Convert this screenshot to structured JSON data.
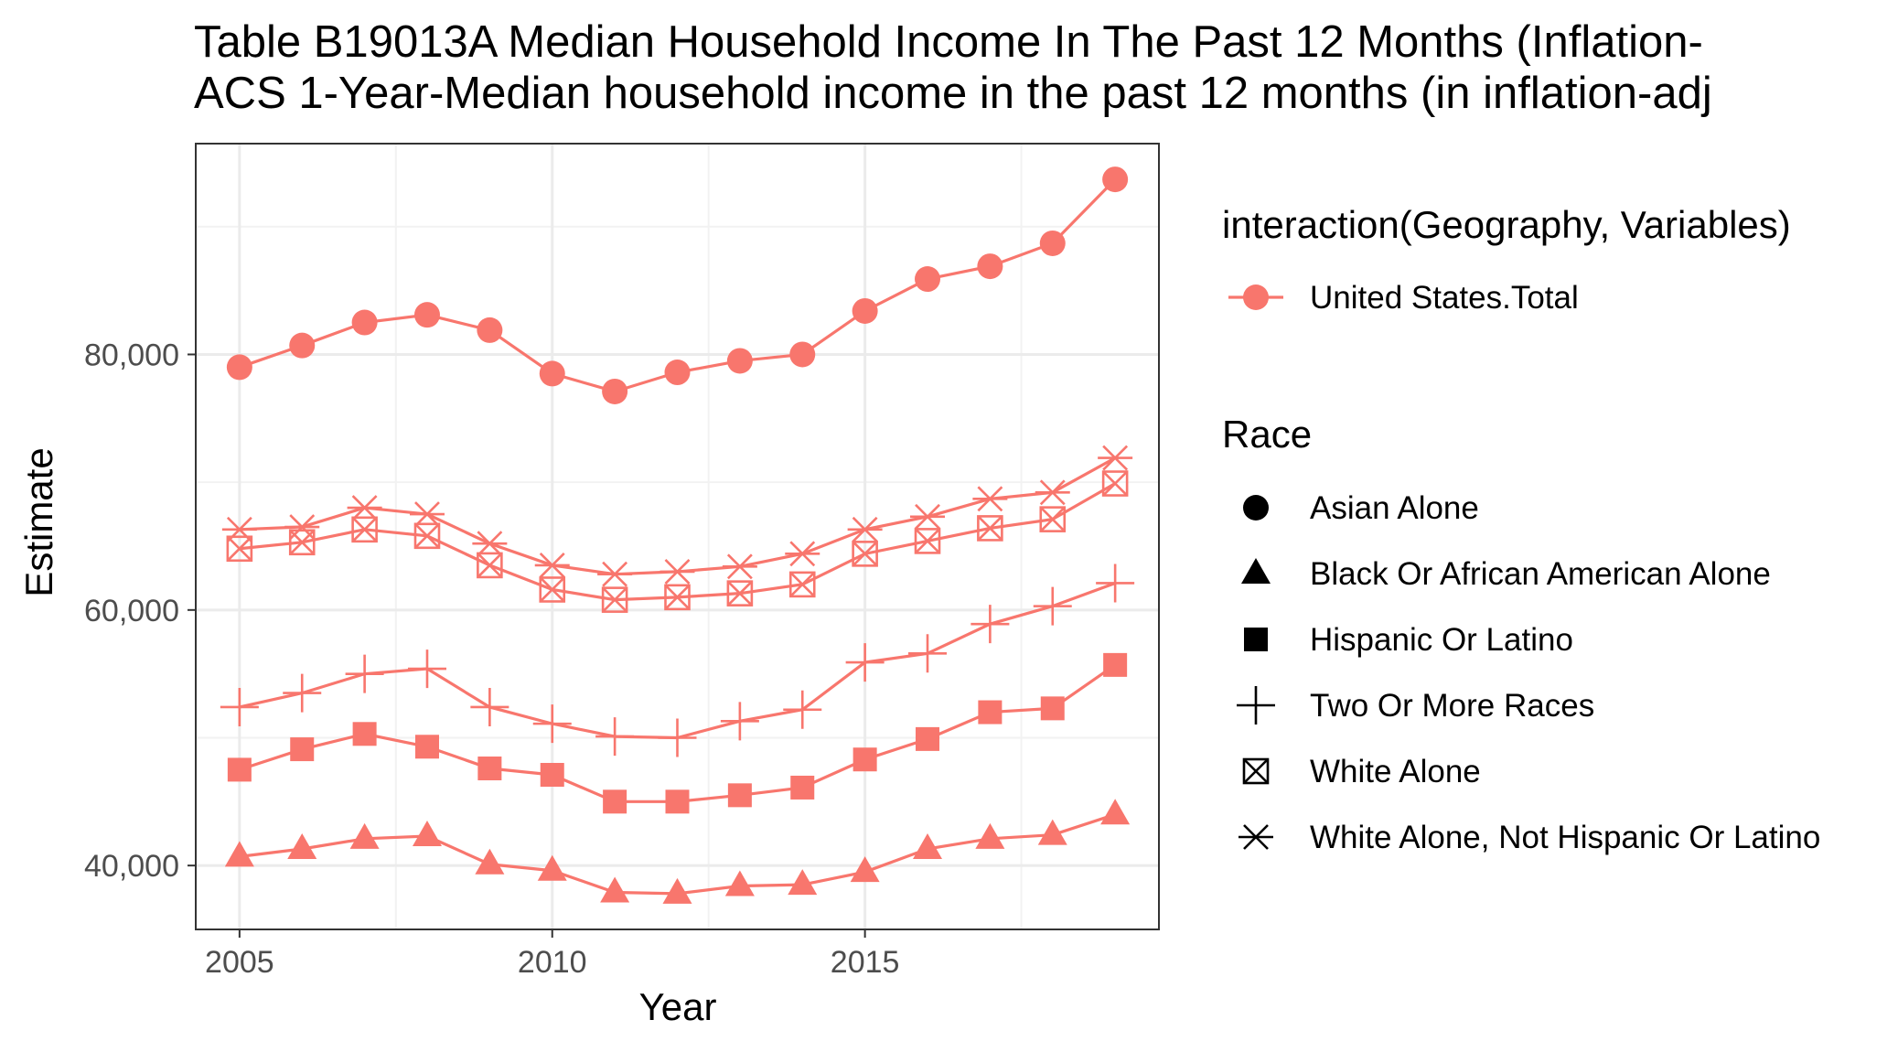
{
  "chart_data": {
    "type": "line",
    "title": [
      "Table B19013A Median Household Income In The Past 12 Months (Inflation-",
      "ACS 1-Year-Median household income in the past 12 months (in inflation-adj"
    ],
    "xlabel": "Year",
    "ylabel": "Estimate",
    "xlim": [
      2004.3,
      2019.7
    ],
    "ylim": [
      35000,
      96500
    ],
    "x_ticks": [
      2005,
      2010,
      2015
    ],
    "y_ticks": [
      40000,
      60000,
      80000
    ],
    "y_tick_labels": [
      "40,000",
      "60,000",
      "80,000"
    ],
    "grid": true,
    "legend_position": "right",
    "color_legend": {
      "title": "interaction(Geography, Variables)",
      "entries": [
        {
          "label": "United States.Total",
          "color": "#F8766D"
        }
      ]
    },
    "shape_legend": {
      "title": "Race",
      "entries": [
        {
          "label": "Asian Alone",
          "shape": "circle"
        },
        {
          "label": "Black Or African American Alone",
          "shape": "triangle"
        },
        {
          "label": "Hispanic Or Latino",
          "shape": "square"
        },
        {
          "label": "Two Or More Races",
          "shape": "plus"
        },
        {
          "label": "White Alone",
          "shape": "boxed-x"
        },
        {
          "label": "White Alone, Not Hispanic Or Latino",
          "shape": "asterisk"
        }
      ]
    },
    "x": [
      2005,
      2006,
      2007,
      2008,
      2009,
      2010,
      2011,
      2012,
      2013,
      2014,
      2015,
      2016,
      2017,
      2018,
      2019
    ],
    "series": [
      {
        "name": "Asian Alone",
        "shape": "circle",
        "color": "#F8766D",
        "values": [
          79000,
          80700,
          82500,
          83100,
          81900,
          78500,
          77100,
          78600,
          79500,
          80000,
          83400,
          85900,
          86900,
          88700,
          93700
        ]
      },
      {
        "name": "Black Or African American Alone",
        "shape": "triangle",
        "color": "#F8766D",
        "values": [
          40700,
          41300,
          42100,
          42300,
          40100,
          39600,
          37900,
          37800,
          38400,
          38500,
          39500,
          41300,
          42100,
          42400,
          44000
        ]
      },
      {
        "name": "Hispanic Or Latino",
        "shape": "square",
        "color": "#F8766D",
        "values": [
          47500,
          49100,
          50300,
          49300,
          47600,
          47100,
          45000,
          45000,
          45500,
          46100,
          48300,
          49900,
          52000,
          52300,
          55700
        ]
      },
      {
        "name": "Two Or More Races",
        "shape": "plus",
        "color": "#F8766D",
        "values": [
          52400,
          53500,
          55000,
          55400,
          52400,
          51100,
          50100,
          50000,
          51300,
          52200,
          55900,
          56600,
          58900,
          60300,
          62100
        ]
      },
      {
        "name": "White Alone",
        "shape": "boxed-x",
        "color": "#F8766D",
        "values": [
          64800,
          65300,
          66300,
          65800,
          63500,
          61600,
          60800,
          61000,
          61300,
          62000,
          64400,
          65400,
          66400,
          67100,
          69900
        ]
      },
      {
        "name": "White Alone, Not Hispanic Or Latino",
        "shape": "asterisk",
        "color": "#F8766D",
        "values": [
          66300,
          66500,
          68000,
          67500,
          65200,
          63500,
          62800,
          63000,
          63400,
          64400,
          66300,
          67300,
          68700,
          69200,
          71900
        ]
      }
    ]
  }
}
